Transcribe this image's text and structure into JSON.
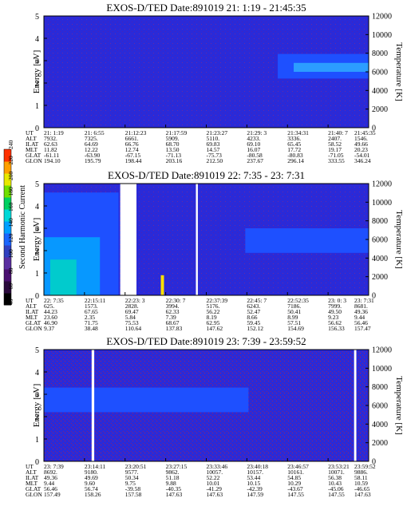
{
  "chart_data": [
    {
      "type": "heatmap",
      "title": "EXOS-D/TED   Date:891019  21: 1:19 - 21:45:35",
      "ylabel": "Energy [eV]",
      "ylabel_right": "Temperature [K]",
      "ylim": [
        0,
        5
      ],
      "ylim_right": [
        0,
        12000
      ],
      "yticks": [
        "0",
        "1",
        "2",
        "3",
        "4",
        "5"
      ],
      "yticks_right": [
        "0",
        "2000",
        "4000",
        "6000",
        "8000",
        "10000",
        "12000"
      ],
      "gaps": [],
      "band": {
        "ymin": 2.2,
        "ymax": 3.3,
        "start_frac": 0.72,
        "color": "#1e50ff"
      },
      "ephemeris": {
        "labels": [
          "UT",
          "ALT",
          "ILAT",
          "MLT",
          "GLAT",
          "GLON"
        ],
        "columns": [
          [
            "21: 1:19",
            "7932.",
            "62.63",
            "11.82",
            "-61.11",
            "194.10"
          ],
          [
            "21: 6:55",
            "7325.",
            "64.69",
            "12.22",
            "-63.90",
            "195.79"
          ],
          [
            "21:12:23",
            "6661.",
            "66.76",
            "12.74",
            "-67.15",
            "198.44"
          ],
          [
            "21:17:59",
            "5909.",
            "68.70",
            "13.50",
            "-71.13",
            "203.16"
          ],
          [
            "21:23:27",
            "5110.",
            "69.83",
            "14.57",
            "-75.73",
            "212.50"
          ],
          [
            "21:29: 3",
            "4233.",
            "69.10",
            "16.07",
            "-80.58",
            "237.67"
          ],
          [
            "21:34:31",
            "3336.",
            "65.45",
            "17.72",
            "-80.83",
            "296.14"
          ],
          [
            "21:40: 7",
            "2407.",
            "58.52",
            "19.17",
            "-71.05",
            "333.55"
          ],
          [
            "21:45:35",
            "1546.",
            "49.66",
            "20.23",
            "-54.01",
            "346.24"
          ]
        ]
      }
    },
    {
      "type": "heatmap",
      "title": "EXOS-D/TED   Date:891019  22: 7:35 - 23: 7:31",
      "ylabel": "Energy [eV]",
      "ylabel_right": "Temperature [K]",
      "ylim": [
        0,
        5
      ],
      "ylim_right": [
        0,
        12000
      ],
      "yticks": [
        "0",
        "1",
        "2",
        "3",
        "4",
        "5"
      ],
      "yticks_right": [
        "0",
        "2000",
        "4000",
        "6000",
        "8000",
        "10000",
        "12000"
      ],
      "gaps": [
        [
          0.235,
          0.285
        ],
        [
          0.468,
          0.474
        ]
      ],
      "band": {
        "ymin": 1.9,
        "ymax": 3.0,
        "start_frac": 0.62,
        "color": "#1e50ff"
      },
      "ephemeris": {
        "labels": [
          "UT",
          "ALT",
          "ILAT",
          "MLT",
          "GLAT",
          "GLON"
        ],
        "columns": [
          [
            "22: 7:35",
            "625.",
            "44.23",
            "23.60",
            "46.90",
            "9.37"
          ],
          [
            "22:15:11",
            "1573.",
            "67.65",
            "2.35",
            "71.75",
            "38.48"
          ],
          [
            "22:23: 3",
            "2828.",
            "69.47",
            "5.84",
            "75.53",
            "110.64"
          ],
          [
            "22:30: 7",
            "3994.",
            "62.33",
            "7.39",
            "68.67",
            "137.83"
          ],
          [
            "22:37:39",
            "5176.",
            "56.22",
            "8.19",
            "62.95",
            "147.62"
          ],
          [
            "22:45: 7",
            "6243.",
            "52.47",
            "8.66",
            "59.45",
            "152.12"
          ],
          [
            "22:52:35",
            "7186.",
            "50.41",
            "8.99",
            "57.51",
            "154.69"
          ],
          [
            "23: 0: 3",
            "7999.",
            "49.50",
            "9.23",
            "56.62",
            "156.33"
          ],
          [
            "23: 7:31",
            "8681.",
            "49.36",
            "9.44",
            "56.46",
            "157.47"
          ]
        ]
      },
      "colorbar": {
        "label": "Second Harmonic Current",
        "ticks": [
          "40",
          "60",
          "80",
          "100",
          "120",
          "140",
          "160",
          "180",
          "200",
          "220",
          "240"
        ],
        "colors": [
          "#000000",
          "#2b0a3d",
          "#4a1070",
          "#5a2fa0",
          "#3040c0",
          "#1a66ff",
          "#00a0ff",
          "#00d8d8",
          "#00d060",
          "#70e000",
          "#e8e800",
          "#ffa000",
          "#ff3000"
        ]
      }
    },
    {
      "type": "heatmap",
      "title": "EXOS-D/TED   Date:891019  23: 7:39 - 23:59:52",
      "ylabel": "Energy [eV]",
      "ylabel_right": "Temperature [K]",
      "ylim": [
        0,
        5
      ],
      "ylim_right": [
        0,
        12000
      ],
      "yticks": [
        "0",
        "1",
        "2",
        "3",
        "4",
        "5"
      ],
      "yticks_right": [
        "0",
        "2000",
        "4000",
        "6000",
        "8000",
        "10000",
        "12000"
      ],
      "gaps": [
        [
          0.147,
          0.155
        ],
        [
          0.955,
          0.962
        ]
      ],
      "band": {
        "ymin": 2.2,
        "ymax": 3.3,
        "start_frac": 0.0,
        "end_frac": 0.63,
        "color": "#1e50ff"
      },
      "ephemeris": {
        "labels": [
          "UT",
          "ALT",
          "ILAT",
          "MLT",
          "GLAT",
          "GLON"
        ],
        "columns": [
          [
            "23: 7:39",
            "8692.",
            "49.36",
            "9.44",
            "56.46",
            "157.49"
          ],
          [
            "23:14:11",
            "9180.",
            "49.69",
            "9.60",
            "56.74",
            "158.26"
          ],
          [
            "23:20:51",
            "9577.",
            "50.34",
            "9.75",
            "-39.58",
            "157.58"
          ],
          [
            "23:27:15",
            "9862.",
            "51.18",
            "9.88",
            "-40.35",
            "147.63"
          ],
          [
            "23:33:46",
            "10057.",
            "52.22",
            "10.01",
            "-41.29",
            "147.63"
          ],
          [
            "23:40:18",
            "10157.",
            "53.44",
            "10.15",
            "-42.39",
            "147.59"
          ],
          [
            "23:46:57",
            "10161.",
            "54.85",
            "10.29",
            "-43.67",
            "147.55"
          ],
          [
            "23:53:21",
            "10071.",
            "56.38",
            "10.43",
            "-45.06",
            "147.55"
          ],
          [
            "23:59:52",
            "9886.",
            "58.11",
            "10.59",
            "-46.65",
            "147.63"
          ]
        ]
      }
    }
  ]
}
